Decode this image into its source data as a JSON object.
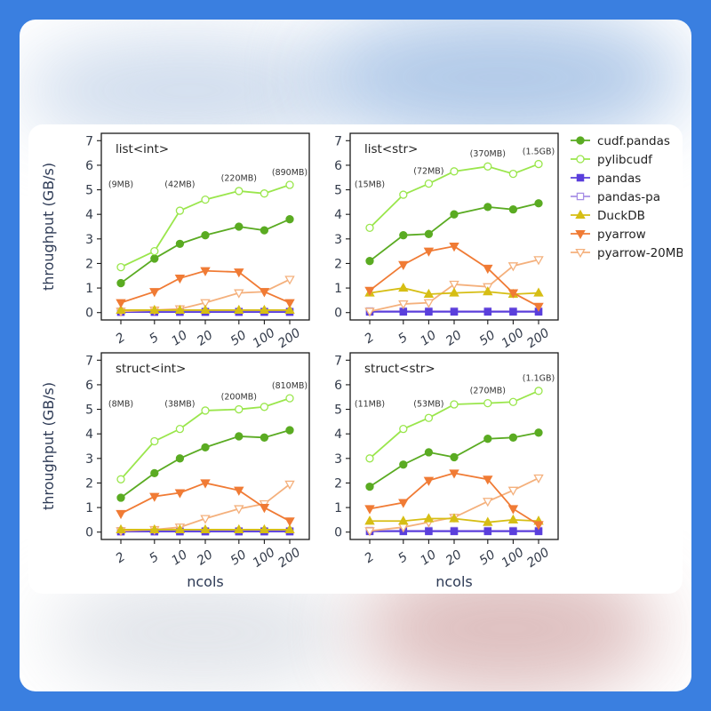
{
  "chart_data": {
    "type": "line",
    "ylabel": "throughput (GB/s)",
    "xlabel": "ncols",
    "x_ticks": [
      "2",
      "5",
      "10",
      "20",
      "50",
      "100",
      "200"
    ],
    "y_ticks": [
      "0",
      "1",
      "2",
      "3",
      "4",
      "5",
      "6",
      "7"
    ],
    "ylim": [
      -0.3,
      7.3
    ],
    "x_scale": "log",
    "grid": false,
    "legend_position": "right",
    "legend": [
      {
        "name": "cudf.pandas",
        "color": "#5aab22",
        "marker": "circle",
        "fill": "filled"
      },
      {
        "name": "pylibcudf",
        "color": "#9ae64c",
        "marker": "circle",
        "fill": "open"
      },
      {
        "name": "pandas",
        "color": "#5a3fdc",
        "marker": "square",
        "fill": "filled"
      },
      {
        "name": "pandas-pa",
        "color": "#a78fe6",
        "marker": "square",
        "fill": "open"
      },
      {
        "name": "DuckDB",
        "color": "#d6be14",
        "marker": "triangle-up",
        "fill": "filled"
      },
      {
        "name": "pyarrow",
        "color": "#f07b35",
        "marker": "triangle-down",
        "fill": "filled"
      },
      {
        "name": "pyarrow-20MB",
        "color": "#f4b07c",
        "marker": "triangle-down",
        "fill": "open"
      }
    ],
    "panels": [
      {
        "title": "list<int>",
        "size_labels": [
          {
            "x": "2",
            "text": "(9MB)"
          },
          {
            "x": "10",
            "text": "(42MB)"
          },
          {
            "x": "50",
            "text": "(220MB)"
          },
          {
            "x": "200",
            "text": "(890MB)"
          }
        ],
        "series": [
          {
            "name": "cudf.pandas",
            "values": [
              1.2,
              2.2,
              2.8,
              3.15,
              3.5,
              3.35,
              3.8
            ]
          },
          {
            "name": "pylibcudf",
            "values": [
              1.85,
              2.5,
              4.15,
              4.6,
              4.95,
              4.85,
              5.2
            ]
          },
          {
            "name": "pandas",
            "values": [
              0.02,
              0.02,
              0.02,
              0.02,
              0.02,
              0.02,
              0.02
            ]
          },
          {
            "name": "pandas-pa",
            "values": [
              0.05,
              0.05,
              0.05,
              0.05,
              0.05,
              0.05,
              0.05
            ]
          },
          {
            "name": "DuckDB",
            "values": [
              0.1,
              0.1,
              0.1,
              0.1,
              0.1,
              0.1,
              0.1
            ]
          },
          {
            "name": "pyarrow",
            "values": [
              0.4,
              0.85,
              1.4,
              1.7,
              1.65,
              0.85,
              0.4
            ]
          },
          {
            "name": "pyarrow-20MB",
            "values": [
              0.05,
              0.1,
              0.15,
              0.4,
              0.8,
              0.85,
              1.35
            ]
          }
        ]
      },
      {
        "title": "list<str>",
        "size_labels": [
          {
            "x": "2",
            "text": "(15MB)"
          },
          {
            "x": "10",
            "text": "(72MB)"
          },
          {
            "x": "50",
            "text": "(370MB)"
          },
          {
            "x": "200",
            "text": "(1.5GB)"
          }
        ],
        "series": [
          {
            "name": "cudf.pandas",
            "values": [
              2.1,
              3.15,
              3.2,
              4.0,
              4.3,
              4.2,
              4.45
            ]
          },
          {
            "name": "pylibcudf",
            "values": [
              3.45,
              4.8,
              5.25,
              5.75,
              5.95,
              5.65,
              6.05
            ]
          },
          {
            "name": "pandas",
            "values": [
              0.03,
              0.03,
              0.03,
              0.03,
              0.03,
              0.03,
              0.03
            ]
          },
          {
            "name": "pandas-pa",
            "values": [
              0.06,
              0.06,
              0.06,
              0.06,
              0.06,
              0.06,
              0.06
            ]
          },
          {
            "name": "DuckDB",
            "values": [
              0.8,
              1.0,
              0.75,
              0.8,
              0.85,
              0.75,
              0.8
            ]
          },
          {
            "name": "pyarrow",
            "values": [
              0.9,
              1.95,
              2.5,
              2.7,
              1.8,
              0.8,
              0.25
            ]
          },
          {
            "name": "pyarrow-20MB",
            "values": [
              0.05,
              0.35,
              0.4,
              1.15,
              1.05,
              1.9,
              2.15
            ]
          }
        ]
      },
      {
        "title": "struct<int>",
        "size_labels": [
          {
            "x": "2",
            "text": "(8MB)"
          },
          {
            "x": "10",
            "text": "(38MB)"
          },
          {
            "x": "50",
            "text": "(200MB)"
          },
          {
            "x": "200",
            "text": "(810MB)"
          }
        ],
        "series": [
          {
            "name": "cudf.pandas",
            "values": [
              1.4,
              2.4,
              3.0,
              3.45,
              3.9,
              3.85,
              4.15
            ]
          },
          {
            "name": "pylibcudf",
            "values": [
              2.15,
              3.7,
              4.2,
              4.95,
              5.0,
              5.1,
              5.45
            ]
          },
          {
            "name": "pandas",
            "values": [
              0.02,
              0.02,
              0.02,
              0.02,
              0.02,
              0.02,
              0.02
            ]
          },
          {
            "name": "pandas-pa",
            "values": [
              0.05,
              0.05,
              0.05,
              0.05,
              0.05,
              0.05,
              0.05
            ]
          },
          {
            "name": "DuckDB",
            "values": [
              0.1,
              0.1,
              0.1,
              0.1,
              0.1,
              0.1,
              0.1
            ]
          },
          {
            "name": "pyarrow",
            "values": [
              0.75,
              1.45,
              1.6,
              2.0,
              1.7,
              1.0,
              0.45
            ]
          },
          {
            "name": "pyarrow-20MB",
            "values": [
              0.05,
              0.1,
              0.2,
              0.55,
              0.95,
              1.15,
              1.95
            ]
          }
        ]
      },
      {
        "title": "struct<str>",
        "size_labels": [
          {
            "x": "2",
            "text": "(11MB)"
          },
          {
            "x": "10",
            "text": "(53MB)"
          },
          {
            "x": "50",
            "text": "(270MB)"
          },
          {
            "x": "200",
            "text": "(1.1GB)"
          }
        ],
        "series": [
          {
            "name": "cudf.pandas",
            "values": [
              1.85,
              2.75,
              3.25,
              3.05,
              3.8,
              3.85,
              4.05
            ]
          },
          {
            "name": "pylibcudf",
            "values": [
              3.0,
              4.2,
              4.65,
              5.2,
              5.25,
              5.3,
              5.75
            ]
          },
          {
            "name": "pandas",
            "values": [
              0.03,
              0.03,
              0.03,
              0.03,
              0.03,
              0.03,
              0.03
            ]
          },
          {
            "name": "pandas-pa",
            "values": [
              0.06,
              0.06,
              0.06,
              0.06,
              0.06,
              0.06,
              0.06
            ]
          },
          {
            "name": "DuckDB",
            "values": [
              0.45,
              0.45,
              0.55,
              0.55,
              0.4,
              0.5,
              0.45
            ]
          },
          {
            "name": "pyarrow",
            "values": [
              0.95,
              1.2,
              2.1,
              2.4,
              2.15,
              0.95,
              0.3
            ]
          },
          {
            "name": "pyarrow-20MB",
            "values": [
              0.05,
              0.2,
              0.4,
              0.6,
              1.25,
              1.7,
              2.2
            ]
          }
        ]
      }
    ]
  }
}
